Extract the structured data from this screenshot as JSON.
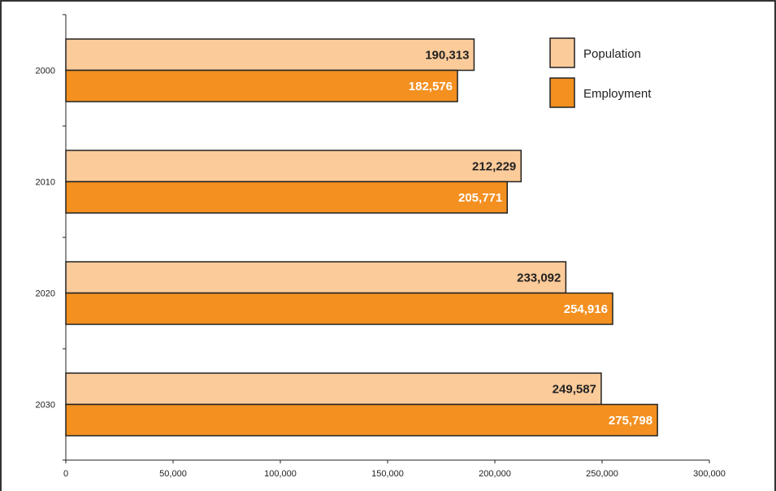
{
  "chart_data": {
    "type": "bar",
    "orientation": "horizontal",
    "categories": [
      "2000",
      "2010",
      "2020",
      "2030"
    ],
    "series": [
      {
        "name": "Population",
        "color": "#FCCB9A",
        "label_color": "#222222",
        "values": [
          190313,
          212229,
          233092,
          249587
        ],
        "labels": [
          "190,313",
          "212,229",
          "233,092",
          "249,587"
        ]
      },
      {
        "name": "Employment",
        "color": "#F39020",
        "label_color": "#FFFFFF",
        "values": [
          182576,
          205771,
          254916,
          275798
        ],
        "labels": [
          "182,576",
          "205,771",
          "254,916",
          "275,798"
        ]
      }
    ],
    "xlim": [
      0,
      300000
    ],
    "x_ticks": [
      0,
      50000,
      100000,
      150000,
      200000,
      250000,
      300000
    ],
    "x_tick_labels": [
      "0",
      "50,000",
      "100,000",
      "150,000",
      "200,000",
      "250,000",
      "300,000"
    ],
    "legend": "top-right",
    "grid": false
  }
}
